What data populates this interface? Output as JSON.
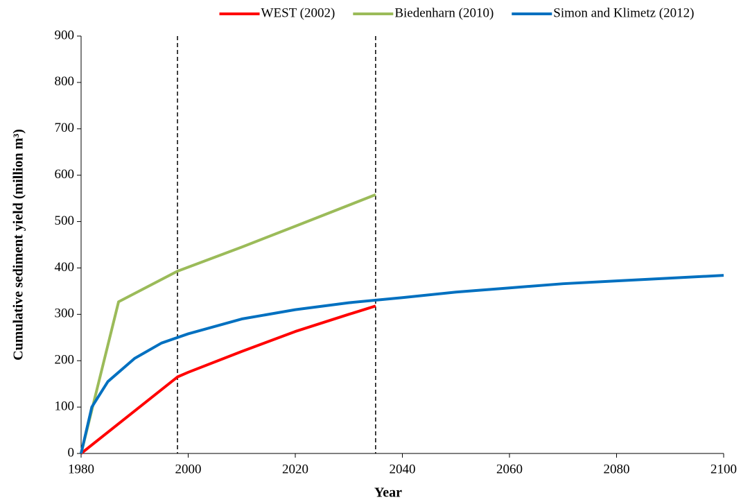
{
  "chart_data": {
    "type": "line",
    "x_label": "Year",
    "y_label": "Cumulative sediment yield (million m³)",
    "xlim": [
      1980,
      2100
    ],
    "xticks": [
      1980,
      2000,
      2020,
      2040,
      2060,
      2080,
      2100
    ],
    "ylim": [
      0,
      900
    ],
    "yticks": [
      0,
      100,
      200,
      300,
      400,
      500,
      600,
      700,
      800,
      900
    ],
    "grid": false,
    "legend": "top",
    "vlines": [
      1998,
      2035
    ],
    "series": [
      {
        "name": "WEST (2002)",
        "color": "#ff0000",
        "x": [
          1980,
          1998,
          2000,
          2010,
          2020,
          2030,
          2035
        ],
        "values": [
          0,
          165,
          175,
          220,
          263,
          300,
          318
        ]
      },
      {
        "name": "Biedenharn (2010)",
        "color": "#9bbb59",
        "x": [
          1980,
          1987,
          1998,
          2010,
          2020,
          2035
        ],
        "values": [
          0,
          327,
          393,
          445,
          490,
          558
        ]
      },
      {
        "name": "Simon and Klimetz (2012)",
        "color": "#0070c0",
        "x": [
          1980,
          1982,
          1985,
          1990,
          1995,
          2000,
          2010,
          2020,
          2030,
          2040,
          2050,
          2060,
          2070,
          2080,
          2090,
          2100
        ],
        "values": [
          0,
          100,
          155,
          205,
          238,
          258,
          290,
          310,
          325,
          336,
          348,
          357,
          366,
          372,
          378,
          384
        ]
      }
    ]
  }
}
